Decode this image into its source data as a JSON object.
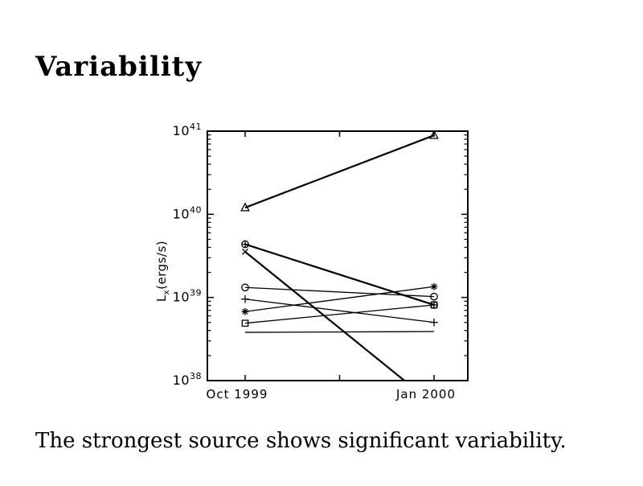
{
  "slide": {
    "title": "Variability",
    "caption": "The strongest source shows significant variability."
  },
  "chart_data": {
    "type": "line",
    "title": "",
    "description": "X-ray luminosity of several sources measured at two epochs, log scale",
    "x_tick_labels": [
      "Oct 1999",
      "Jan 2000"
    ],
    "ylabel": {
      "symbol": "L",
      "subscript": "x",
      "units": "(ergs/s)"
    },
    "y_scale": "log",
    "y_tick_base": "10",
    "y_tick_exponents": [
      "38",
      "39",
      "40",
      "41"
    ],
    "ylim_log": [
      38,
      41
    ],
    "grid": false,
    "legend": "none",
    "axis_color": "#000000",
    "line_color": "#000000",
    "background": "#ffffff",
    "series": [
      {
        "name": "source-triangle",
        "marker": "triangle",
        "marker_at": "both",
        "lw": 2.2,
        "points": [
          {
            "t": 0,
            "logL": 40.08
          },
          {
            "t": 1,
            "logL": 40.95
          }
        ]
      },
      {
        "name": "source-circle-plus",
        "marker": "circle-plus",
        "marker_at": "both",
        "lw": 2.2,
        "points": [
          {
            "t": 0,
            "logL": 39.64
          },
          {
            "t": 1,
            "logL": 38.91
          }
        ]
      },
      {
        "name": "source-x",
        "marker": "x",
        "marker_at": "first",
        "lw": 2.2,
        "points": [
          {
            "t": 0,
            "logL": 39.55
          },
          {
            "t": 0.843,
            "logL": 38.0
          }
        ]
      },
      {
        "name": "source-circle",
        "marker": "circle",
        "marker_at": "both",
        "lw": 1.3,
        "points": [
          {
            "t": 0,
            "logL": 39.12
          },
          {
            "t": 1,
            "logL": 39.01
          }
        ]
      },
      {
        "name": "source-plus",
        "marker": "plus",
        "marker_at": "both",
        "lw": 1.3,
        "points": [
          {
            "t": 0,
            "logL": 38.98
          },
          {
            "t": 1,
            "logL": 38.7
          }
        ]
      },
      {
        "name": "source-asterisk",
        "marker": "asterisk",
        "marker_at": "both",
        "lw": 1.3,
        "points": [
          {
            "t": 0,
            "logL": 38.83
          },
          {
            "t": 1,
            "logL": 39.13
          }
        ]
      },
      {
        "name": "source-square",
        "marker": "square",
        "marker_at": "both",
        "lw": 1.3,
        "points": [
          {
            "t": 0,
            "logL": 38.69
          },
          {
            "t": 1,
            "logL": 38.91
          }
        ]
      },
      {
        "name": "source-flat",
        "marker": "none",
        "marker_at": "none",
        "lw": 1.3,
        "points": [
          {
            "t": 0,
            "logL": 38.58
          },
          {
            "t": 1,
            "logL": 38.59
          }
        ]
      }
    ]
  }
}
